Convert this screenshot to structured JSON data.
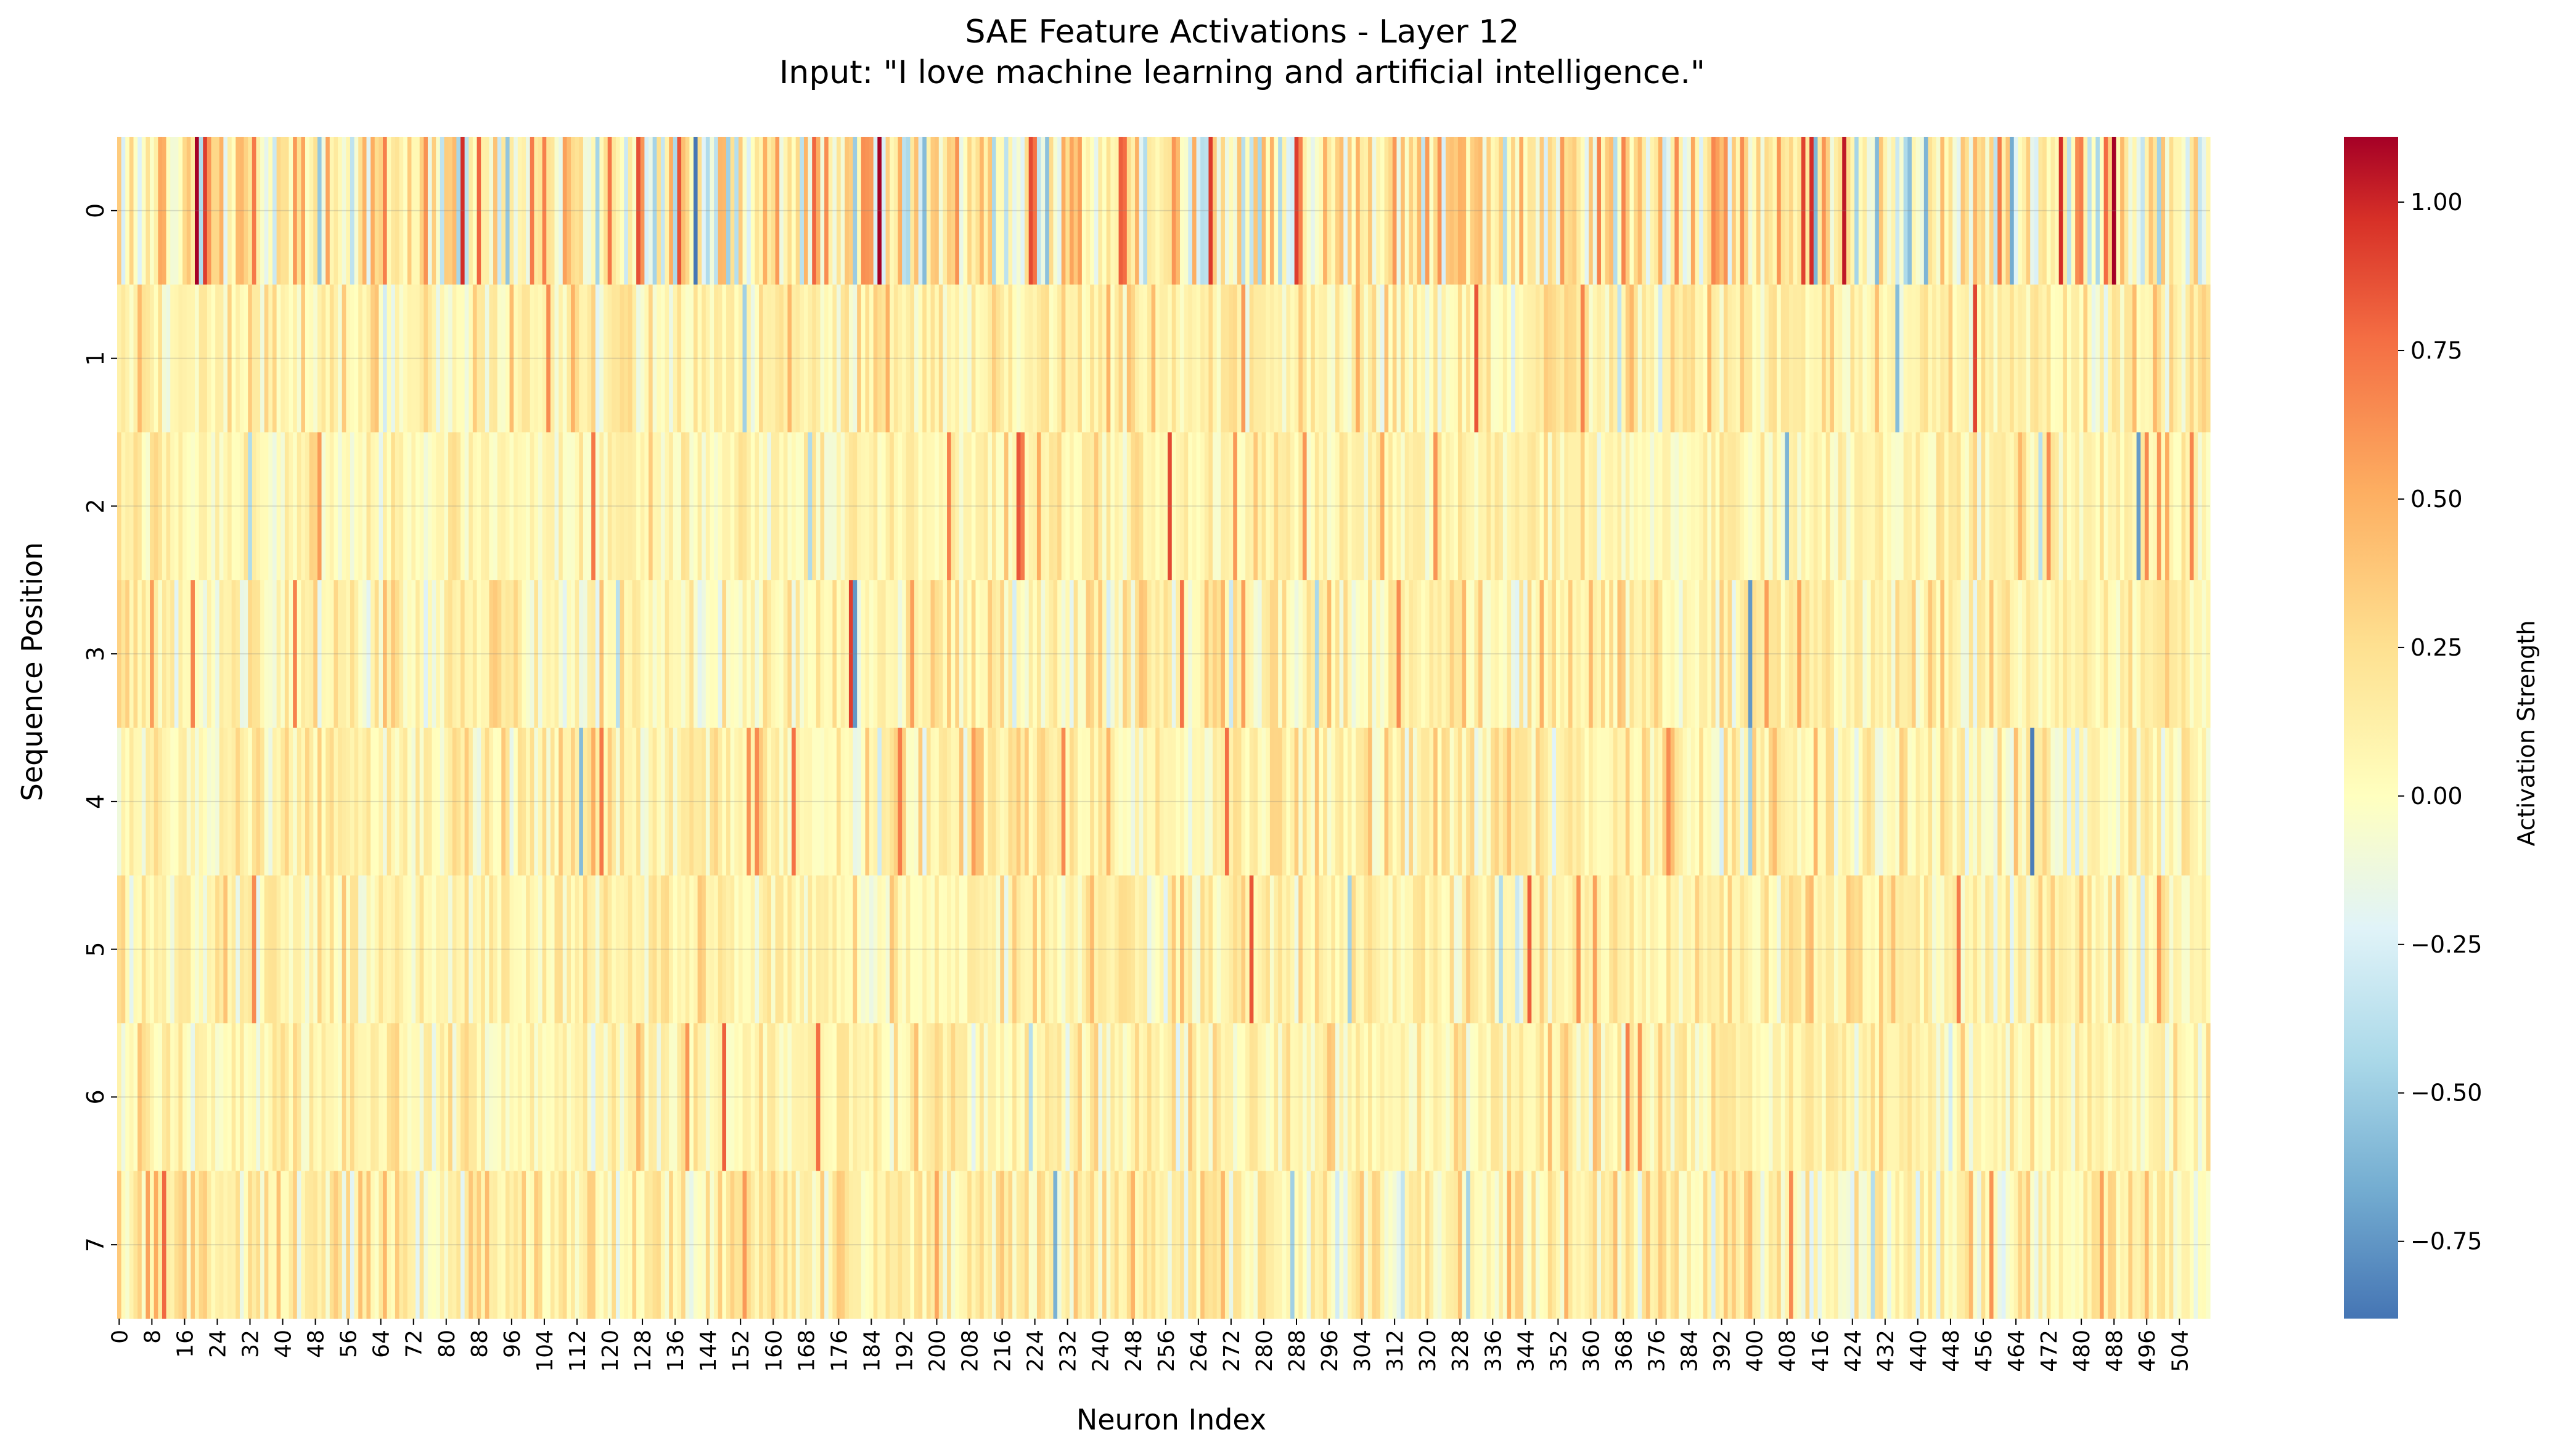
{
  "chart_data": {
    "type": "heatmap",
    "title": "SAE Feature Activations - Layer 12",
    "subtitle": "Input: \"I love machine learning and artificial intelligence.\"",
    "xlabel": "Neuron Index",
    "ylabel": "Sequence Position",
    "colorbar_label": "Activation Strength",
    "colormap": "RdYlBu_r",
    "rows": 8,
    "columns": 512,
    "y_ticks": [
      "0",
      "1",
      "2",
      "3",
      "4",
      "5",
      "6",
      "7"
    ],
    "x_tick_step": 8,
    "x_ticks": [
      "0",
      "8",
      "16",
      "24",
      "32",
      "40",
      "48",
      "56",
      "64",
      "72",
      "80",
      "88",
      "96",
      "104",
      "112",
      "120",
      "128",
      "136",
      "144",
      "152",
      "160",
      "168",
      "176",
      "184",
      "192",
      "200",
      "208",
      "216",
      "224",
      "232",
      "240",
      "248",
      "256",
      "264",
      "272",
      "280",
      "288",
      "296",
      "304",
      "312",
      "320",
      "328",
      "336",
      "344",
      "352",
      "360",
      "368",
      "376",
      "384",
      "392",
      "400",
      "408",
      "416",
      "424",
      "432",
      "440",
      "448",
      "456",
      "464",
      "472",
      "480",
      "488",
      "496",
      "504"
    ],
    "colorbar_range": [
      -0.88,
      1.11
    ],
    "colorbar_ticks": [
      "1.00",
      "0.75",
      "0.50",
      "0.25",
      "0.00",
      "−0.25",
      "−0.50",
      "−0.75"
    ],
    "colorbar_tick_values": [
      1.0,
      0.75,
      0.5,
      0.25,
      0.0,
      -0.25,
      -0.5,
      -0.75
    ],
    "grid": true,
    "row_activation_spread": [
      0.45,
      0.18,
      0.15,
      0.2,
      0.2,
      0.17,
      0.17,
      0.22
    ],
    "row_activation_mean": [
      0.15,
      0.12,
      0.08,
      0.1,
      0.1,
      0.1,
      0.1,
      0.12
    ]
  },
  "colors": {
    "low": "#4575b4",
    "mid": "#ffffbf",
    "high": "#a50026"
  }
}
